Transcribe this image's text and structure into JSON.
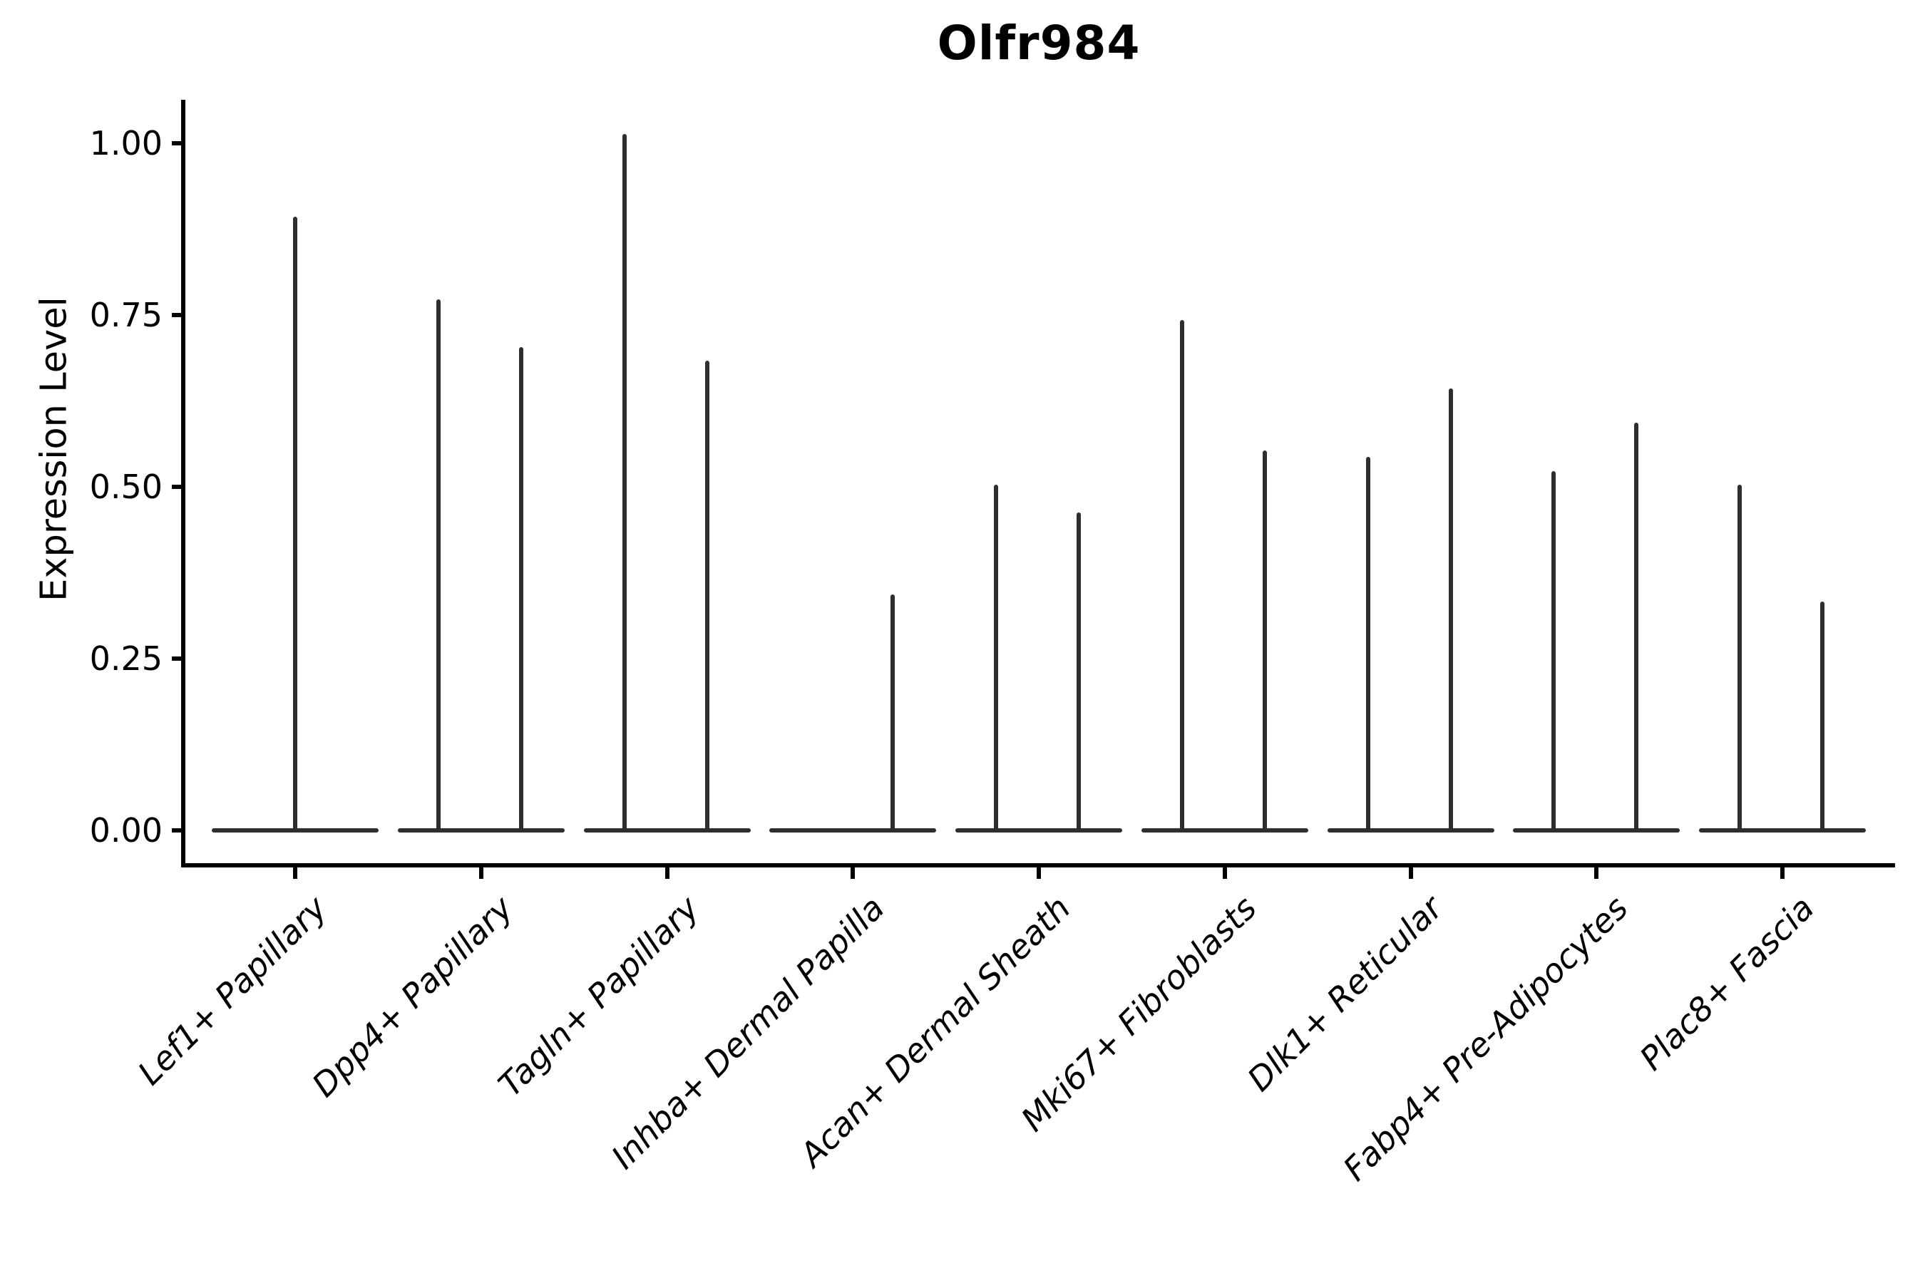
{
  "figure": {
    "title": "Olfr984",
    "y_axis_label": "Expression Level"
  },
  "chart_data": {
    "type": "violin",
    "title": "Olfr984",
    "xlabel": "",
    "ylabel": "Expression Level",
    "ylim": [
      0,
      1.06
    ],
    "grid": false,
    "legend_position": "none",
    "violin_line_color": "#2e2e2e",
    "axis_color": "#000000",
    "description": "Violin plot of Olfr984 expression; each violin is collapsed flat at 0 with thin vertical spikes reaching the maximum expression of the few expressing cells. Categories with two spikes have a left and right sub-violin; categories with one spike have it centered or right of center.",
    "yticks": [
      {
        "value": 0.0,
        "label": "0.00"
      },
      {
        "value": 0.25,
        "label": "0.25"
      },
      {
        "value": 0.5,
        "label": "0.50"
      },
      {
        "value": 0.75,
        "label": "0.75"
      },
      {
        "value": 1.0,
        "label": "1.00"
      }
    ],
    "baseline_value": 0.0,
    "groups": [
      {
        "label": "Lef1+ Papillary",
        "violins": [
          {
            "side": "center",
            "peak": 0.89
          }
        ]
      },
      {
        "label": "Dpp4+ Papillary",
        "violins": [
          {
            "side": "left",
            "peak": 0.77
          },
          {
            "side": "right",
            "peak": 0.7
          }
        ]
      },
      {
        "label": "Tagln+ Papillary",
        "violins": [
          {
            "side": "left",
            "peak": 1.01
          },
          {
            "side": "right",
            "peak": 0.68
          }
        ]
      },
      {
        "label": "Inhba+ Dermal Papilla",
        "violins": [
          {
            "side": "right",
            "peak": 0.34
          }
        ]
      },
      {
        "label": "Acan+ Dermal Sheath",
        "violins": [
          {
            "side": "left",
            "peak": 0.5
          },
          {
            "side": "right",
            "peak": 0.46
          }
        ]
      },
      {
        "label": "Mki67+ Fibroblasts",
        "violins": [
          {
            "side": "left",
            "peak": 0.74
          },
          {
            "side": "right",
            "peak": 0.55
          }
        ]
      },
      {
        "label": "Dlk1+ Reticular",
        "violins": [
          {
            "side": "left",
            "peak": 0.54
          },
          {
            "side": "right",
            "peak": 0.64
          }
        ]
      },
      {
        "label": "Fabp4+ Pre-Adipocytes",
        "violins": [
          {
            "side": "left",
            "peak": 0.52
          },
          {
            "side": "right",
            "peak": 0.59
          }
        ]
      },
      {
        "label": "Plac8+ Fascia",
        "violins": [
          {
            "side": "left",
            "peak": 0.5
          },
          {
            "side": "right",
            "peak": 0.33
          }
        ]
      }
    ]
  }
}
